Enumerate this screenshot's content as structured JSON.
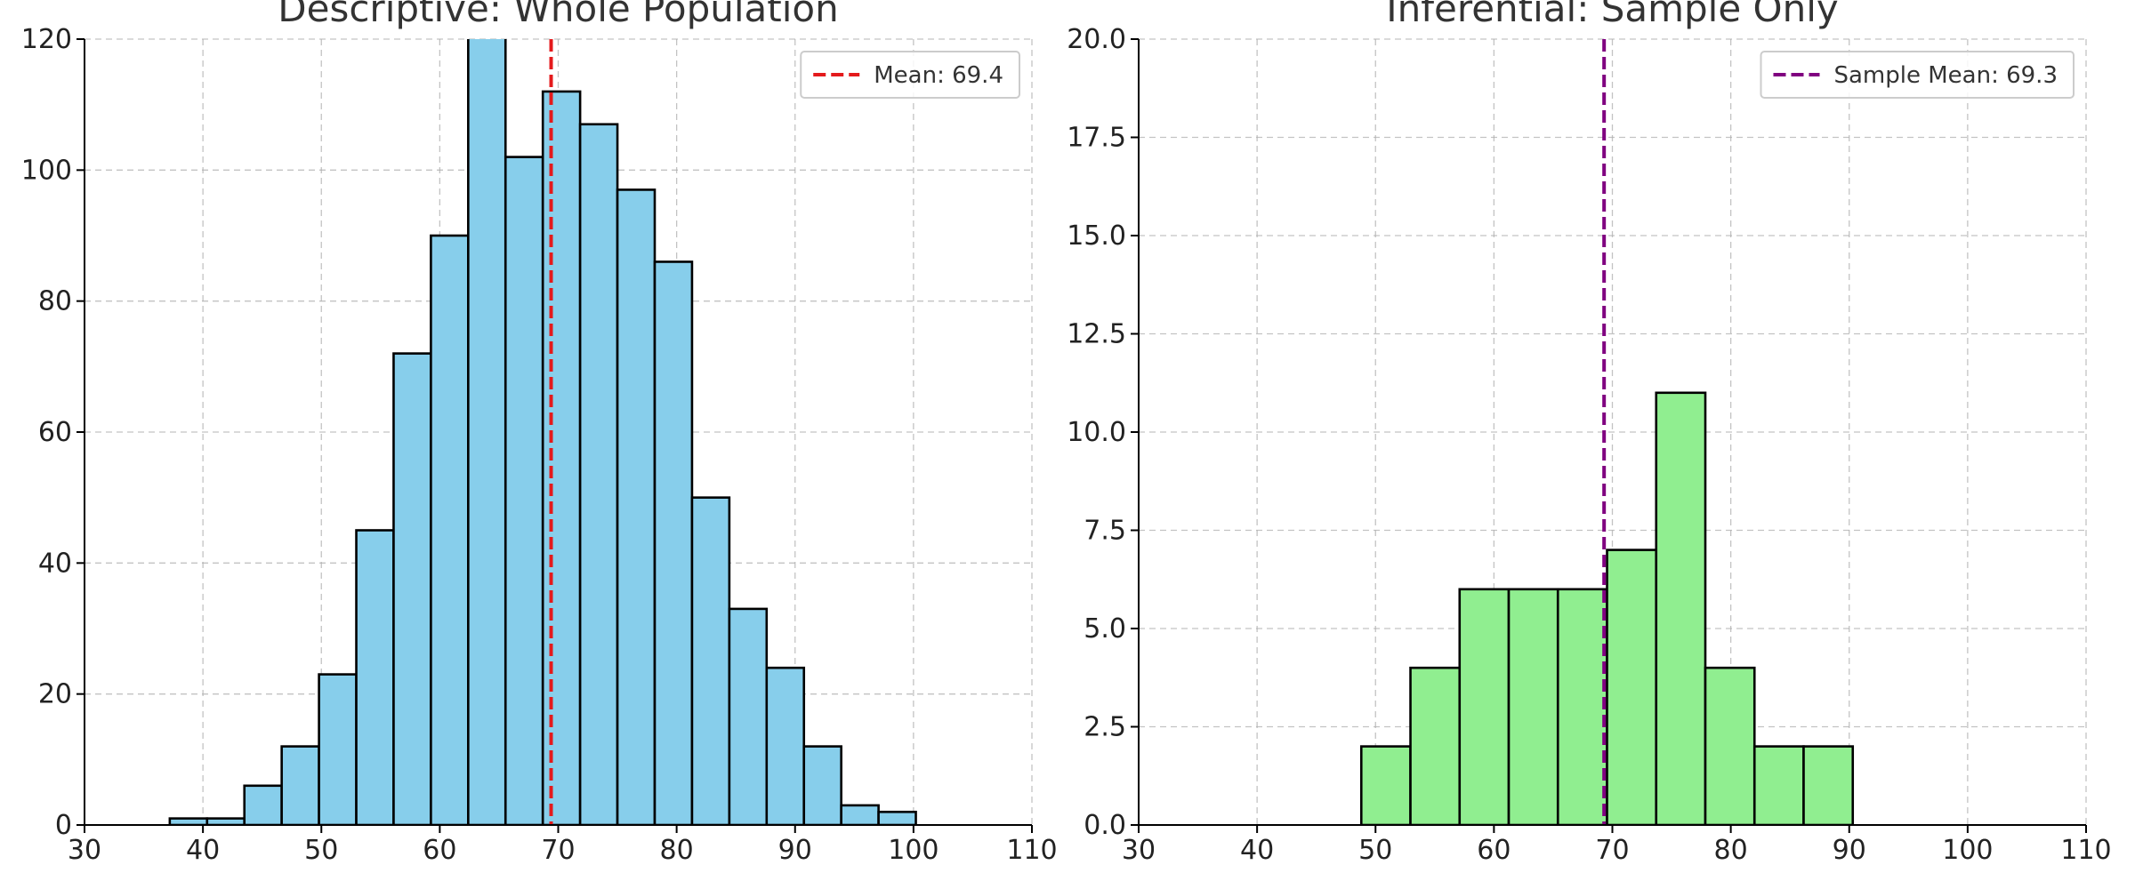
{
  "chart_data": [
    {
      "type": "bar",
      "title": "Descriptive: Whole Population",
      "xlim": [
        30,
        110
      ],
      "ylim": [
        0,
        120
      ],
      "xticks": [
        30,
        40,
        50,
        60,
        70,
        80,
        90,
        100,
        110
      ],
      "yticks": [
        0,
        20,
        40,
        60,
        80,
        100,
        120
      ],
      "ytick_labels": [
        "0",
        "20",
        "40",
        "60",
        "80",
        "100",
        "120"
      ],
      "grid": true,
      "legend_position": "top-right",
      "bar_color": "#87ceeb",
      "bin_edges": [
        37.2,
        40.35,
        43.5,
        46.65,
        49.8,
        52.95,
        56.1,
        59.25,
        62.4,
        65.55,
        68.7,
        71.85,
        75.0,
        78.15,
        81.3,
        84.45,
        87.6,
        90.75,
        93.9,
        97.05,
        100.2
      ],
      "values": [
        1,
        1,
        6,
        12,
        23,
        45,
        72,
        90,
        124,
        102,
        112,
        107,
        97,
        86,
        50,
        33,
        24,
        12,
        3,
        2
      ],
      "mean_line": {
        "value": 69.4,
        "label": "Mean: 69.4",
        "color": "#e41a1c"
      }
    },
    {
      "type": "bar",
      "title": "Inferential: Sample Only",
      "xlim": [
        30,
        110
      ],
      "ylim": [
        0,
        20
      ],
      "xticks": [
        30,
        40,
        50,
        60,
        70,
        80,
        90,
        100,
        110
      ],
      "yticks": [
        0,
        2.5,
        5,
        7.5,
        10,
        12.5,
        15,
        17.5,
        20
      ],
      "ytick_labels": [
        "0.0",
        "2.5",
        "5.0",
        "7.5",
        "10.0",
        "12.5",
        "15.0",
        "17.5",
        "20.0"
      ],
      "grid": true,
      "legend_position": "top-right",
      "bar_color": "#90ee90",
      "bin_edges": [
        48.8,
        52.95,
        57.1,
        61.25,
        65.4,
        69.55,
        73.7,
        77.85,
        82.0,
        86.15,
        90.3
      ],
      "values": [
        2,
        4,
        6,
        6,
        6,
        7,
        11,
        4,
        2,
        2
      ],
      "mean_line": {
        "value": 69.3,
        "label": "Sample Mean: 69.3",
        "color": "#800080"
      }
    }
  ]
}
